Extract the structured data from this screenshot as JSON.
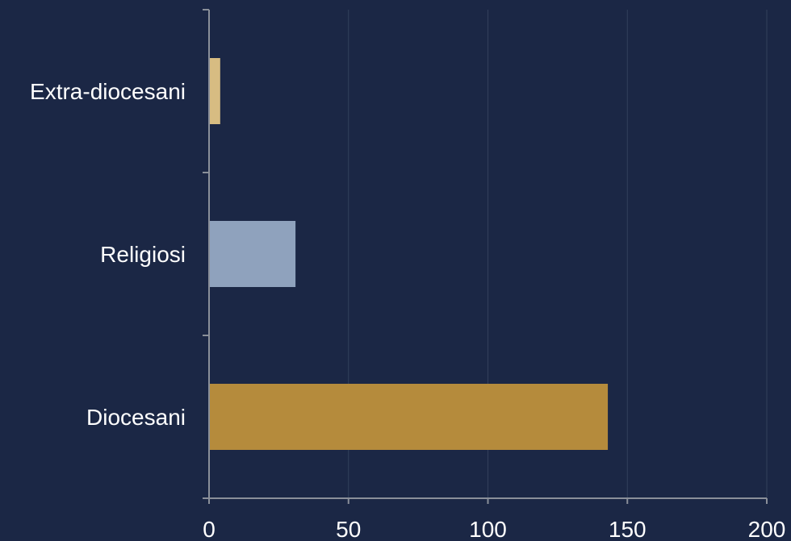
{
  "colors": {
    "background": "#1b2745",
    "axis": "#8a8f99",
    "grid": "#33405c"
  },
  "chart_data": {
    "type": "bar",
    "orientation": "horizontal",
    "categories": [
      "Extra-diocesani",
      "Religiosi",
      "Diocesani"
    ],
    "values": [
      4,
      31,
      143
    ],
    "bar_colors": [
      "#d7bc82",
      "#8fa2bd",
      "#b58b3c"
    ],
    "xlim": [
      0,
      200
    ],
    "x_ticks": [
      "0",
      "50",
      "100",
      "150",
      "200"
    ],
    "title": "",
    "xlabel": "",
    "ylabel": "",
    "grid": "vertical",
    "legend": "none"
  }
}
